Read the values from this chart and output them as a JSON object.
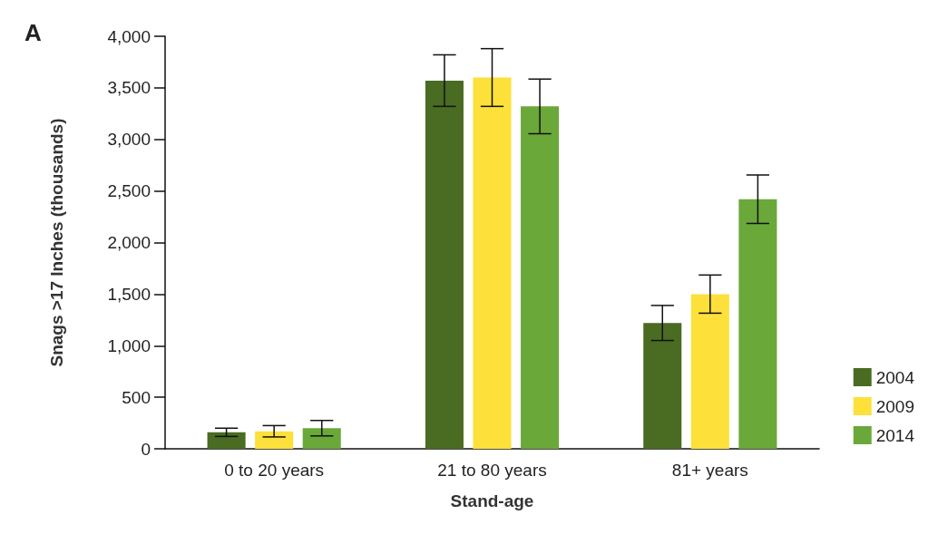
{
  "chart_data": {
    "type": "bar",
    "title": "A",
    "xlabel": "Stand-age",
    "ylabel": "Snags >17 Inches (thousands)",
    "categories": [
      "0 to 20 years",
      "21 to 80 years",
      "81+ years"
    ],
    "series": [
      {
        "name": "2004",
        "color": "#4a6b22",
        "values": [
          160,
          3570,
          1220
        ],
        "errors": [
          40,
          250,
          170
        ]
      },
      {
        "name": "2009",
        "color": "#fde03a",
        "values": [
          170,
          3600,
          1500
        ],
        "errors": [
          55,
          280,
          185
        ]
      },
      {
        "name": "2014",
        "color": "#6aa83a",
        "values": [
          200,
          3320,
          2420
        ],
        "errors": [
          75,
          265,
          235
        ]
      }
    ],
    "ylim": [
      0,
      4000
    ],
    "yticks": [
      0,
      500,
      {
        "value": 1000,
        "label": "1,000"
      },
      {
        "value": 1500,
        "label": "1,500"
      },
      {
        "value": 2000,
        "label": "2,000"
      },
      {
        "value": 2500,
        "label": "2,500"
      },
      {
        "value": 3000,
        "label": "3,000"
      },
      {
        "value": 3500,
        "label": "3,500"
      },
      {
        "value": 4000,
        "label": "4,000"
      }
    ],
    "grid": false,
    "legend": "bottom right"
  }
}
